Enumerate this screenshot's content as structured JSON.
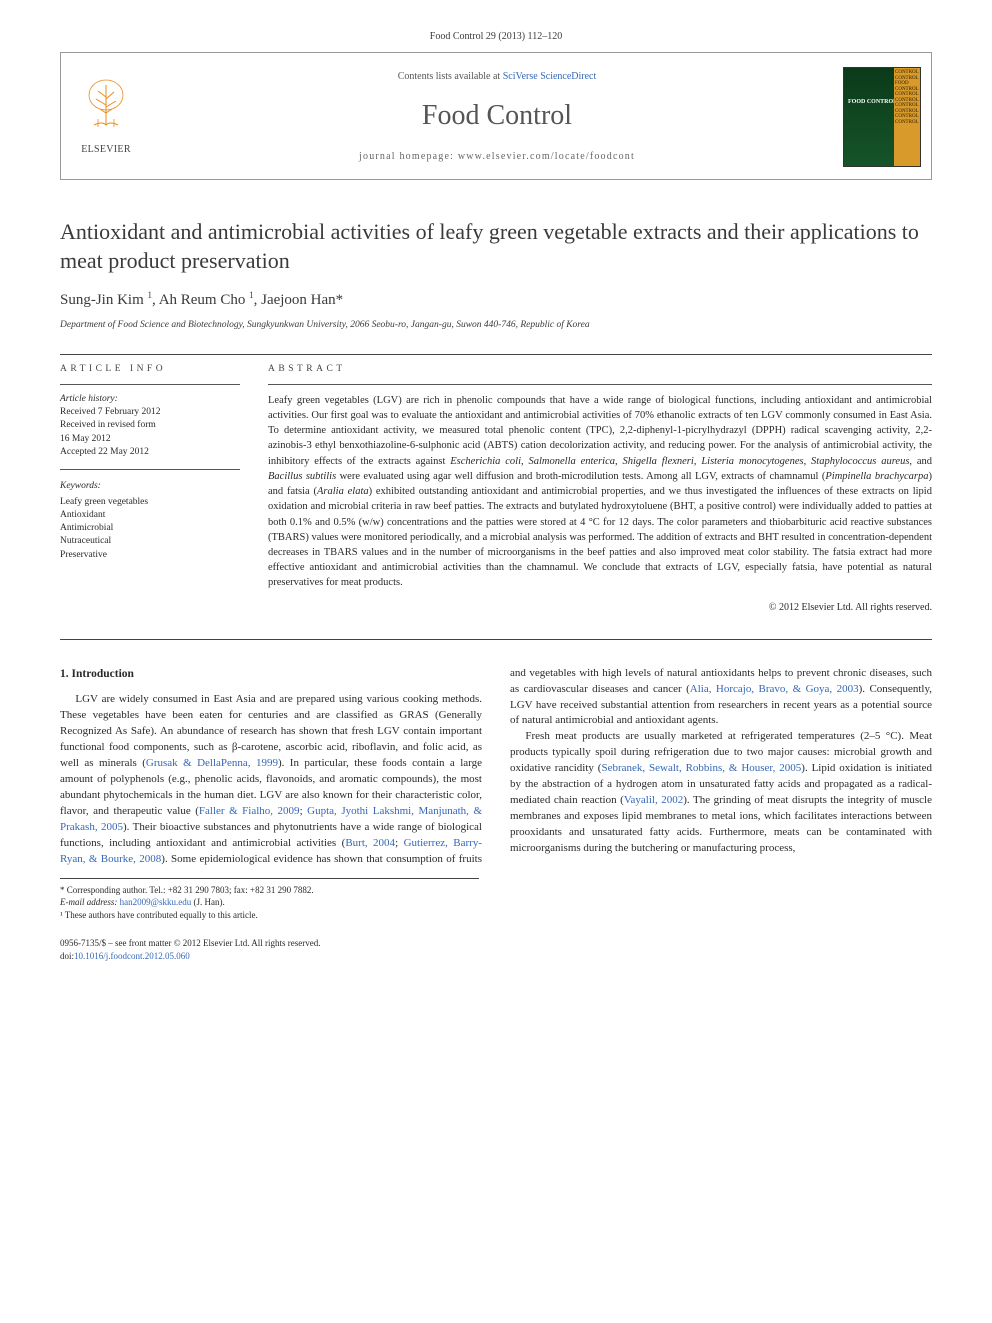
{
  "citation": "Food Control 29 (2013) 112–120",
  "header": {
    "contents_prefix": "Contents lists available at ",
    "contents_link": "SciVerse ScienceDirect",
    "journal": "Food Control",
    "homepage_prefix": "journal homepage: ",
    "homepage_url": "www.elsevier.com/locate/foodcont",
    "publisher": "ELSEVIER"
  },
  "cover": {
    "title": "FOOD CONTROL",
    "repeat": "CONTROL"
  },
  "article": {
    "title": "Antioxidant and antimicrobial activities of leafy green vegetable extracts and their applications to meat product preservation",
    "authors_html": "Sung-Jin Kim <sup>1</sup>, Ah Reum Cho <sup>1</sup>, Jaejoon Han*",
    "affiliation": "Department of Food Science and Biotechnology, Sungkyunkwan University, 2066 Seobu-ro, Jangan-gu, Suwon 440-746, Republic of Korea"
  },
  "labels": {
    "article_info": "ARTICLE INFO",
    "abstract": "ABSTRACT",
    "history": "Article history:",
    "keywords": "Keywords:",
    "intro": "1. Introduction"
  },
  "history": {
    "received": "Received 7 February 2012",
    "revised": "Received in revised form",
    "revised_date": "16 May 2012",
    "accepted": "Accepted 22 May 2012"
  },
  "keywords": [
    "Leafy green vegetables",
    "Antioxidant",
    "Antimicrobial",
    "Nutraceutical",
    "Preservative"
  ],
  "abstract": "Leafy green vegetables (LGV) are rich in phenolic compounds that have a wide range of biological functions, including antioxidant and antimicrobial activities. Our first goal was to evaluate the antioxidant and antimicrobial activities of 70% ethanolic extracts of ten LGV commonly consumed in East Asia. To determine antioxidant activity, we measured total phenolic content (TPC), 2,2-diphenyl-1-picrylhydrazyl (DPPH) radical scavenging activity, 2,2-azinobis-3 ethyl benxothiazoline-6-sulphonic acid (ABTS) cation decolorization activity, and reducing power. For the analysis of antimicrobial activity, the inhibitory effects of the extracts against <em>Escherichia coli</em>, <em>Salmonella enterica</em>, <em>Shigella flexneri</em>, <em>Listeria monocytogenes</em>, <em>Staphylococcus aureus</em>, and <em>Bacillus subtilis</em> were evaluated using agar well diffusion and broth-microdilution tests. Among all LGV, extracts of chamnamul (<em>Pimpinella brachycarpa</em>) and fatsia (<em>Aralia elata</em>) exhibited outstanding antioxidant and antimicrobial properties, and we thus investigated the influences of these extracts on lipid oxidation and microbial criteria in raw beef patties. The extracts and butylated hydroxytoluene (BHT, a positive control) were individually added to patties at both 0.1% and 0.5% (w/w) concentrations and the patties were stored at 4 °C for 12 days. The color parameters and thiobarbituric acid reactive substances (TBARS) values were monitored periodically, and a microbial analysis was performed. The addition of extracts and BHT resulted in concentration-dependent decreases in TBARS values and in the number of microorganisms in the beef patties and also improved meat color stability. The fatsia extract had more effective antioxidant and antimicrobial activities than the chamnamul. We conclude that extracts of LGV, especially fatsia, have potential as natural preservatives for meat products.",
  "copyright_abstract": "© 2012 Elsevier Ltd. All rights reserved.",
  "body": {
    "p1_a": "LGV are widely consumed in East Asia and are prepared using various cooking methods. These vegetables have been eaten for centuries and are classified as GRAS (Generally Recognized As Safe). An abundance of research has shown that fresh LGV contain important functional food components, such as β-carotene, ascorbic acid, riboflavin, and folic acid, as well as minerals (",
    "ref1": "Grusak & DellaPenna, 1999",
    "p1_b": "). In particular, these foods contain a large amount of polyphenols (e.g., phenolic acids, flavonoids, and aromatic compounds), the most abundant phytochemicals in the human diet. LGV are also known for their characteristic color, flavor, and therapeutic value (",
    "ref2": "Faller & Fialho, 2009",
    "ref2b": "Gupta, Jyothi Lakshmi, Manjunath, & Prakash, 2005",
    "p1_c": "). Their bioactive substances and phytonutrients have a wide range of biological functions, including",
    "p2_a": "antioxidant and antimicrobial activities (",
    "ref3": "Burt, 2004",
    "ref3b": "Gutierrez, Barry-Ryan, & Bourke, 2008",
    "p2_b": "). Some epidemiological evidence has shown that consumption of fruits and vegetables with high levels of natural antioxidants helps to prevent chronic diseases, such as cardiovascular diseases and cancer (",
    "ref4": "Alia, Horcajo, Bravo, & Goya, 2003",
    "p2_c": "). Consequently, LGV have received substantial attention from researchers in recent years as a potential source of natural antimicrobial and antioxidant agents.",
    "p3_a": "Fresh meat products are usually marketed at refrigerated temperatures (2–5 °C). Meat products typically spoil during refrigeration due to two major causes: microbial growth and oxidative rancidity (",
    "ref5": "Sebranek, Sewalt, Robbins, & Houser, 2005",
    "p3_b": "). Lipid oxidation is initiated by the abstraction of a hydrogen atom in unsaturated fatty acids and propagated as a radical-mediated chain reaction (",
    "ref6": "Vayalil, 2002",
    "p3_c": "). The grinding of meat disrupts the integrity of muscle membranes and exposes lipid membranes to metal ions, which facilitates interactions between prooxidants and unsaturated fatty acids. Furthermore, meats can be contaminated with microorganisms during the butchering or manufacturing process,"
  },
  "footnotes": {
    "corr": "* Corresponding author. Tel.: +82 31 290 7803; fax: +82 31 290 7882.",
    "email_label": "E-mail address:",
    "email": "han2009@skku.edu",
    "email_paren": " (J. Han).",
    "contrib": "¹ These authors have contributed equally to this article."
  },
  "footer": {
    "front_matter": "0956-7135/$ – see front matter © 2012 Elsevier Ltd. All rights reserved.",
    "doi_label": "doi:",
    "doi": "10.1016/j.foodcont.2012.05.060"
  },
  "colors": {
    "link": "#3468b8",
    "text": "#2a2a2a",
    "rule": "#444444",
    "cover_green": "#165428",
    "cover_gold": "#d89a2a",
    "elsevier_orange": "#ea8b1c"
  }
}
